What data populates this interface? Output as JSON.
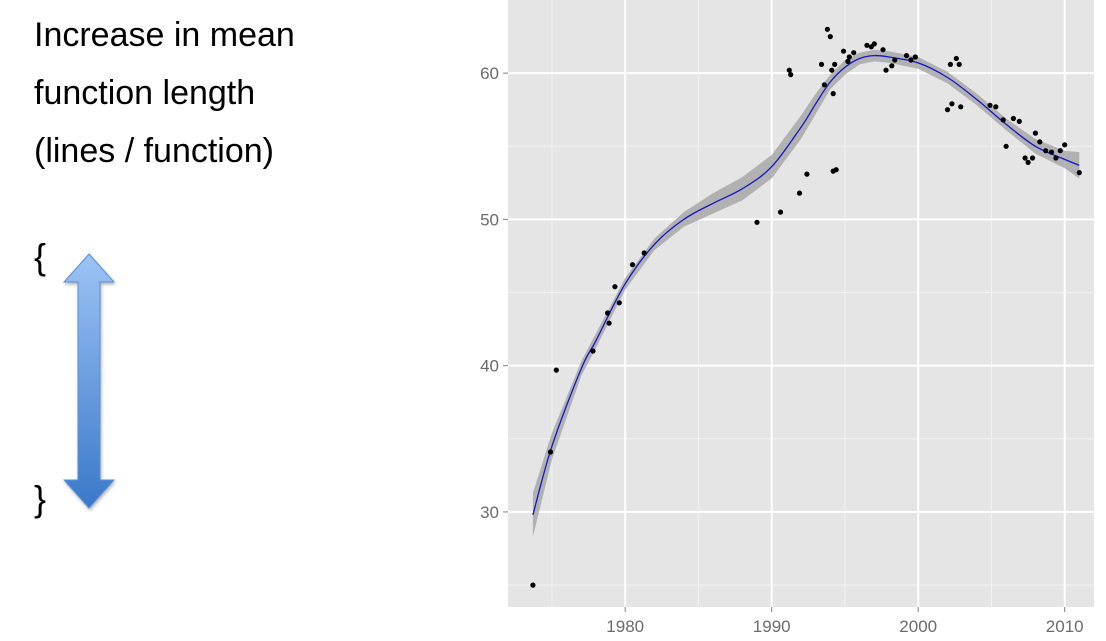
{
  "heading": {
    "line1": "Increase in mean",
    "line2": "function length",
    "line3": "(lines / function)"
  },
  "braces": {
    "open": "{",
    "close": "}"
  },
  "arrow": {
    "icon": "double-arrow-vertical-icon",
    "color_top": "#9cc3f5",
    "color_bottom": "#3a78c9"
  },
  "chart_data": {
    "type": "scatter",
    "title": "",
    "xlabel": "",
    "ylabel": "",
    "xlim": [
      1972,
      2012
    ],
    "ylim": [
      23.5,
      65
    ],
    "x_ticks": [
      1980,
      1990,
      2000,
      2010
    ],
    "y_ticks": [
      30,
      40,
      50,
      60
    ],
    "grid": true,
    "background": "#e5e5e5",
    "point_color": "#000000",
    "smooth_color": "#1515c8",
    "band_color": "#a8a8a8",
    "points": [
      [
        1973.7,
        25.0
      ],
      [
        1974.9,
        34.1
      ],
      [
        1975.3,
        39.7
      ],
      [
        1977.8,
        41.0
      ],
      [
        1978.9,
        42.9
      ],
      [
        1978.8,
        43.6
      ],
      [
        1979.3,
        45.4
      ],
      [
        1979.6,
        44.3
      ],
      [
        1980.5,
        46.9
      ],
      [
        1981.3,
        47.7
      ],
      [
        1989.0,
        49.8
      ],
      [
        1990.6,
        50.5
      ],
      [
        1991.2,
        60.2
      ],
      [
        1991.3,
        59.9
      ],
      [
        1991.9,
        51.8
      ],
      [
        1992.4,
        53.1
      ],
      [
        1993.4,
        60.6
      ],
      [
        1993.6,
        59.2
      ],
      [
        1993.8,
        63.0
      ],
      [
        1994.0,
        62.5
      ],
      [
        1994.1,
        60.2
      ],
      [
        1994.2,
        58.6
      ],
      [
        1994.2,
        53.3
      ],
      [
        1994.4,
        53.4
      ],
      [
        1994.3,
        60.6
      ],
      [
        1994.9,
        61.5
      ],
      [
        1995.2,
        60.8
      ],
      [
        1995.3,
        61.1
      ],
      [
        1995.6,
        61.4
      ],
      [
        1996.5,
        61.9
      ],
      [
        1996.8,
        61.8
      ],
      [
        1997.0,
        62.0
      ],
      [
        1997.6,
        61.6
      ],
      [
        1997.8,
        60.2
      ],
      [
        1998.2,
        60.5
      ],
      [
        1998.4,
        60.9
      ],
      [
        1999.2,
        61.2
      ],
      [
        1999.5,
        60.9
      ],
      [
        1999.8,
        61.1
      ],
      [
        2002.0,
        57.5
      ],
      [
        2002.2,
        60.6
      ],
      [
        2002.3,
        57.9
      ],
      [
        2002.6,
        61.0
      ],
      [
        2002.8,
        60.6
      ],
      [
        2002.9,
        57.7
      ],
      [
        2004.9,
        57.8
      ],
      [
        2005.3,
        57.7
      ],
      [
        2005.8,
        56.8
      ],
      [
        2006.0,
        55.0
      ],
      [
        2006.5,
        56.9
      ],
      [
        2006.9,
        56.7
      ],
      [
        2007.3,
        54.2
      ],
      [
        2007.5,
        53.9
      ],
      [
        2007.8,
        54.2
      ],
      [
        2008.0,
        55.9
      ],
      [
        2008.3,
        55.3
      ],
      [
        2008.7,
        54.7
      ],
      [
        2009.1,
        54.6
      ],
      [
        2009.4,
        54.2
      ],
      [
        2009.7,
        54.7
      ],
      [
        2010.0,
        55.1
      ],
      [
        2011.0,
        53.2
      ]
    ],
    "smooth": [
      [
        1973.7,
        29.8
      ],
      [
        1975,
        34.5
      ],
      [
        1977,
        39.8
      ],
      [
        1978,
        41.7
      ],
      [
        1980,
        45.6
      ],
      [
        1982,
        48.3
      ],
      [
        1984,
        50.0
      ],
      [
        1986,
        51.1
      ],
      [
        1988,
        52.1
      ],
      [
        1990,
        53.6
      ],
      [
        1992,
        56.3
      ],
      [
        1993,
        57.9
      ],
      [
        1994,
        59.4
      ],
      [
        1995,
        60.4
      ],
      [
        1996,
        61.0
      ],
      [
        1997,
        61.2
      ],
      [
        1998,
        61.1
      ],
      [
        2000,
        60.7
      ],
      [
        2002,
        59.7
      ],
      [
        2004,
        58.2
      ],
      [
        2006,
        56.5
      ],
      [
        2008,
        55.0
      ],
      [
        2010,
        54.1
      ],
      [
        2011,
        53.7
      ]
    ],
    "band_halfwidth": [
      1.5,
      0.9,
      0.5,
      0.5,
      0.4,
      0.4,
      0.5,
      0.7,
      0.8,
      0.8,
      0.8,
      0.7,
      0.5,
      0.5,
      0.4,
      0.4,
      0.4,
      0.4,
      0.4,
      0.4,
      0.4,
      0.5,
      0.6,
      0.9
    ]
  }
}
